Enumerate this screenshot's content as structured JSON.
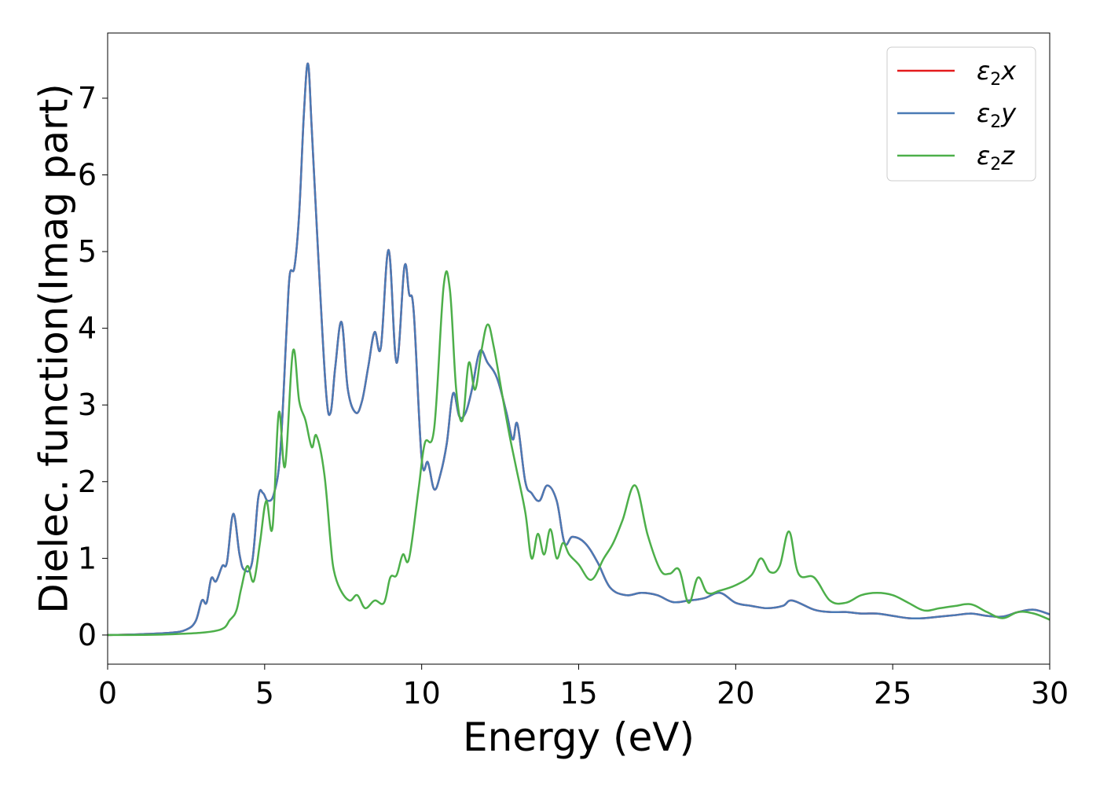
{
  "chart_data": {
    "type": "line",
    "xlabel": "Energy (eV)",
    "ylabel": "Dielec. function(Imag part)",
    "xlim": [
      0,
      30
    ],
    "ylim": [
      -0.38,
      7.85
    ],
    "xticks": [
      0,
      5,
      10,
      15,
      20,
      25,
      30
    ],
    "xtick_labels": [
      "0",
      "5",
      "10",
      "15",
      "20",
      "25",
      "30"
    ],
    "yticks": [
      0,
      1,
      2,
      3,
      4,
      5,
      6,
      7
    ],
    "ytick_labels": [
      "0",
      "1",
      "2",
      "3",
      "4",
      "5",
      "6",
      "7"
    ],
    "grid": false,
    "legend_position": "top-right",
    "series": [
      {
        "name": "ε₂x",
        "legend_base": "ε",
        "legend_sub": "2",
        "legend_var": "x",
        "color": "#e41a1c",
        "x": [
          0,
          1,
          2,
          2.5,
          2.8,
          3.0,
          3.15,
          3.3,
          3.45,
          3.65,
          3.8,
          4.0,
          4.2,
          4.35,
          4.6,
          4.8,
          4.95,
          5.1,
          5.3,
          5.5,
          5.7,
          5.8,
          5.95,
          6.1,
          6.25,
          6.38,
          6.5,
          6.7,
          6.95,
          7.1,
          7.25,
          7.45,
          7.65,
          7.9,
          8.1,
          8.3,
          8.5,
          8.7,
          8.95,
          9.2,
          9.45,
          9.6,
          9.75,
          10.0,
          10.2,
          10.4,
          10.6,
          10.8,
          11.0,
          11.2,
          11.4,
          11.6,
          11.85,
          12.1,
          12.4,
          12.7,
          12.9,
          13.05,
          13.3,
          13.5,
          13.75,
          14.0,
          14.3,
          14.55,
          14.8,
          15.2,
          15.6,
          16.0,
          16.5,
          17.0,
          17.5,
          18.0,
          18.5,
          19.0,
          19.5,
          20.0,
          20.5,
          21.0,
          21.5,
          21.8,
          22.5,
          23.0,
          23.5,
          24.0,
          24.5,
          25.0,
          25.5,
          26.0,
          26.5,
          27.0,
          27.5,
          28.0,
          28.5,
          29.0,
          29.5,
          30.0
        ],
        "y": [
          0,
          0.01,
          0.03,
          0.07,
          0.18,
          0.45,
          0.42,
          0.74,
          0.7,
          0.9,
          0.95,
          1.58,
          1.05,
          0.85,
          0.95,
          1.8,
          1.85,
          1.75,
          1.85,
          2.4,
          4.0,
          4.7,
          4.8,
          5.5,
          6.8,
          7.45,
          6.6,
          5.0,
          3.2,
          2.9,
          3.5,
          4.08,
          3.2,
          2.9,
          3.05,
          3.5,
          3.95,
          3.75,
          5.02,
          3.55,
          4.8,
          4.45,
          4.2,
          2.3,
          2.25,
          1.9,
          2.1,
          2.5,
          3.15,
          2.85,
          2.9,
          3.2,
          3.7,
          3.55,
          3.35,
          2.9,
          2.55,
          2.75,
          2.0,
          1.85,
          1.75,
          1.95,
          1.75,
          1.2,
          1.28,
          1.2,
          0.95,
          0.62,
          0.52,
          0.55,
          0.52,
          0.43,
          0.45,
          0.48,
          0.55,
          0.42,
          0.38,
          0.35,
          0.38,
          0.45,
          0.33,
          0.3,
          0.3,
          0.28,
          0.28,
          0.25,
          0.22,
          0.22,
          0.24,
          0.26,
          0.28,
          0.25,
          0.24,
          0.3,
          0.33,
          0.27
        ]
      },
      {
        "name": "ε₂y",
        "legend_base": "ε",
        "legend_sub": "2",
        "legend_var": "y",
        "color": "#4a7ab5",
        "x": [
          0,
          1,
          2,
          2.5,
          2.8,
          3.0,
          3.15,
          3.3,
          3.45,
          3.65,
          3.8,
          4.0,
          4.2,
          4.35,
          4.6,
          4.8,
          4.95,
          5.1,
          5.3,
          5.5,
          5.7,
          5.8,
          5.95,
          6.1,
          6.25,
          6.38,
          6.5,
          6.7,
          6.95,
          7.1,
          7.25,
          7.45,
          7.65,
          7.9,
          8.1,
          8.3,
          8.5,
          8.7,
          8.95,
          9.2,
          9.45,
          9.6,
          9.75,
          10.0,
          10.2,
          10.4,
          10.6,
          10.8,
          11.0,
          11.2,
          11.4,
          11.6,
          11.85,
          12.1,
          12.4,
          12.7,
          12.9,
          13.05,
          13.3,
          13.5,
          13.75,
          14.0,
          14.3,
          14.55,
          14.8,
          15.2,
          15.6,
          16.0,
          16.5,
          17.0,
          17.5,
          18.0,
          18.5,
          19.0,
          19.5,
          20.0,
          20.5,
          21.0,
          21.5,
          21.8,
          22.5,
          23.0,
          23.5,
          24.0,
          24.5,
          25.0,
          25.5,
          26.0,
          26.5,
          27.0,
          27.5,
          28.0,
          28.5,
          29.0,
          29.5,
          30.0
        ],
        "y": [
          0,
          0.01,
          0.03,
          0.07,
          0.18,
          0.45,
          0.42,
          0.74,
          0.7,
          0.9,
          0.95,
          1.58,
          1.05,
          0.85,
          0.95,
          1.8,
          1.85,
          1.75,
          1.85,
          2.4,
          4.0,
          4.7,
          4.8,
          5.5,
          6.8,
          7.45,
          6.6,
          5.0,
          3.2,
          2.9,
          3.5,
          4.08,
          3.2,
          2.9,
          3.05,
          3.5,
          3.95,
          3.75,
          5.02,
          3.55,
          4.8,
          4.45,
          4.2,
          2.3,
          2.25,
          1.9,
          2.1,
          2.5,
          3.15,
          2.85,
          2.9,
          3.2,
          3.7,
          3.55,
          3.35,
          2.9,
          2.55,
          2.75,
          2.0,
          1.85,
          1.75,
          1.95,
          1.75,
          1.2,
          1.28,
          1.2,
          0.95,
          0.62,
          0.52,
          0.55,
          0.52,
          0.43,
          0.45,
          0.48,
          0.55,
          0.42,
          0.38,
          0.35,
          0.38,
          0.45,
          0.33,
          0.3,
          0.3,
          0.28,
          0.28,
          0.25,
          0.22,
          0.22,
          0.24,
          0.26,
          0.28,
          0.25,
          0.24,
          0.3,
          0.33,
          0.27
        ]
      },
      {
        "name": "ε₂z",
        "legend_base": "ε",
        "legend_sub": "2",
        "legend_var": "z",
        "color": "#4daf4a",
        "x": [
          0,
          2,
          3.5,
          3.9,
          4.1,
          4.25,
          4.45,
          4.65,
          4.85,
          5.05,
          5.25,
          5.45,
          5.65,
          5.9,
          6.1,
          6.3,
          6.5,
          6.65,
          6.9,
          7.1,
          7.2,
          7.4,
          7.7,
          7.95,
          8.2,
          8.5,
          8.8,
          9.0,
          9.2,
          9.4,
          9.6,
          9.9,
          10.1,
          10.4,
          10.7,
          10.9,
          11.1,
          11.3,
          11.5,
          11.7,
          11.9,
          12.1,
          12.3,
          12.6,
          12.8,
          13.0,
          13.3,
          13.5,
          13.7,
          13.9,
          14.1,
          14.3,
          14.5,
          14.7,
          15.0,
          15.4,
          15.8,
          16.1,
          16.4,
          16.8,
          17.2,
          17.6,
          17.9,
          18.2,
          18.5,
          18.8,
          19.1,
          19.5,
          20.0,
          20.5,
          20.8,
          21.1,
          21.4,
          21.7,
          22.0,
          22.5,
          23.0,
          23.5,
          24.0,
          24.5,
          25.0,
          25.5,
          26.0,
          26.5,
          27.0,
          27.5,
          28.0,
          28.5,
          29.0,
          29.5,
          30.0
        ],
        "y": [
          0,
          0.01,
          0.06,
          0.2,
          0.32,
          0.6,
          0.9,
          0.7,
          1.2,
          1.75,
          1.4,
          2.9,
          2.2,
          3.7,
          3.05,
          2.8,
          2.45,
          2.6,
          2.1,
          1.2,
          0.85,
          0.6,
          0.45,
          0.52,
          0.35,
          0.45,
          0.42,
          0.75,
          0.78,
          1.05,
          1.0,
          1.9,
          2.5,
          2.7,
          4.55,
          4.5,
          3.2,
          2.8,
          3.55,
          3.2,
          3.7,
          4.05,
          3.75,
          3.05,
          2.6,
          2.2,
          1.6,
          1.0,
          1.32,
          1.05,
          1.38,
          1.0,
          1.2,
          1.05,
          0.92,
          0.72,
          1.0,
          1.2,
          1.5,
          1.95,
          1.3,
          0.85,
          0.8,
          0.85,
          0.42,
          0.75,
          0.55,
          0.58,
          0.65,
          0.78,
          1.0,
          0.82,
          0.9,
          1.35,
          0.8,
          0.75,
          0.45,
          0.42,
          0.52,
          0.55,
          0.52,
          0.42,
          0.32,
          0.35,
          0.38,
          0.4,
          0.3,
          0.22,
          0.3,
          0.28,
          0.2
        ]
      }
    ]
  }
}
